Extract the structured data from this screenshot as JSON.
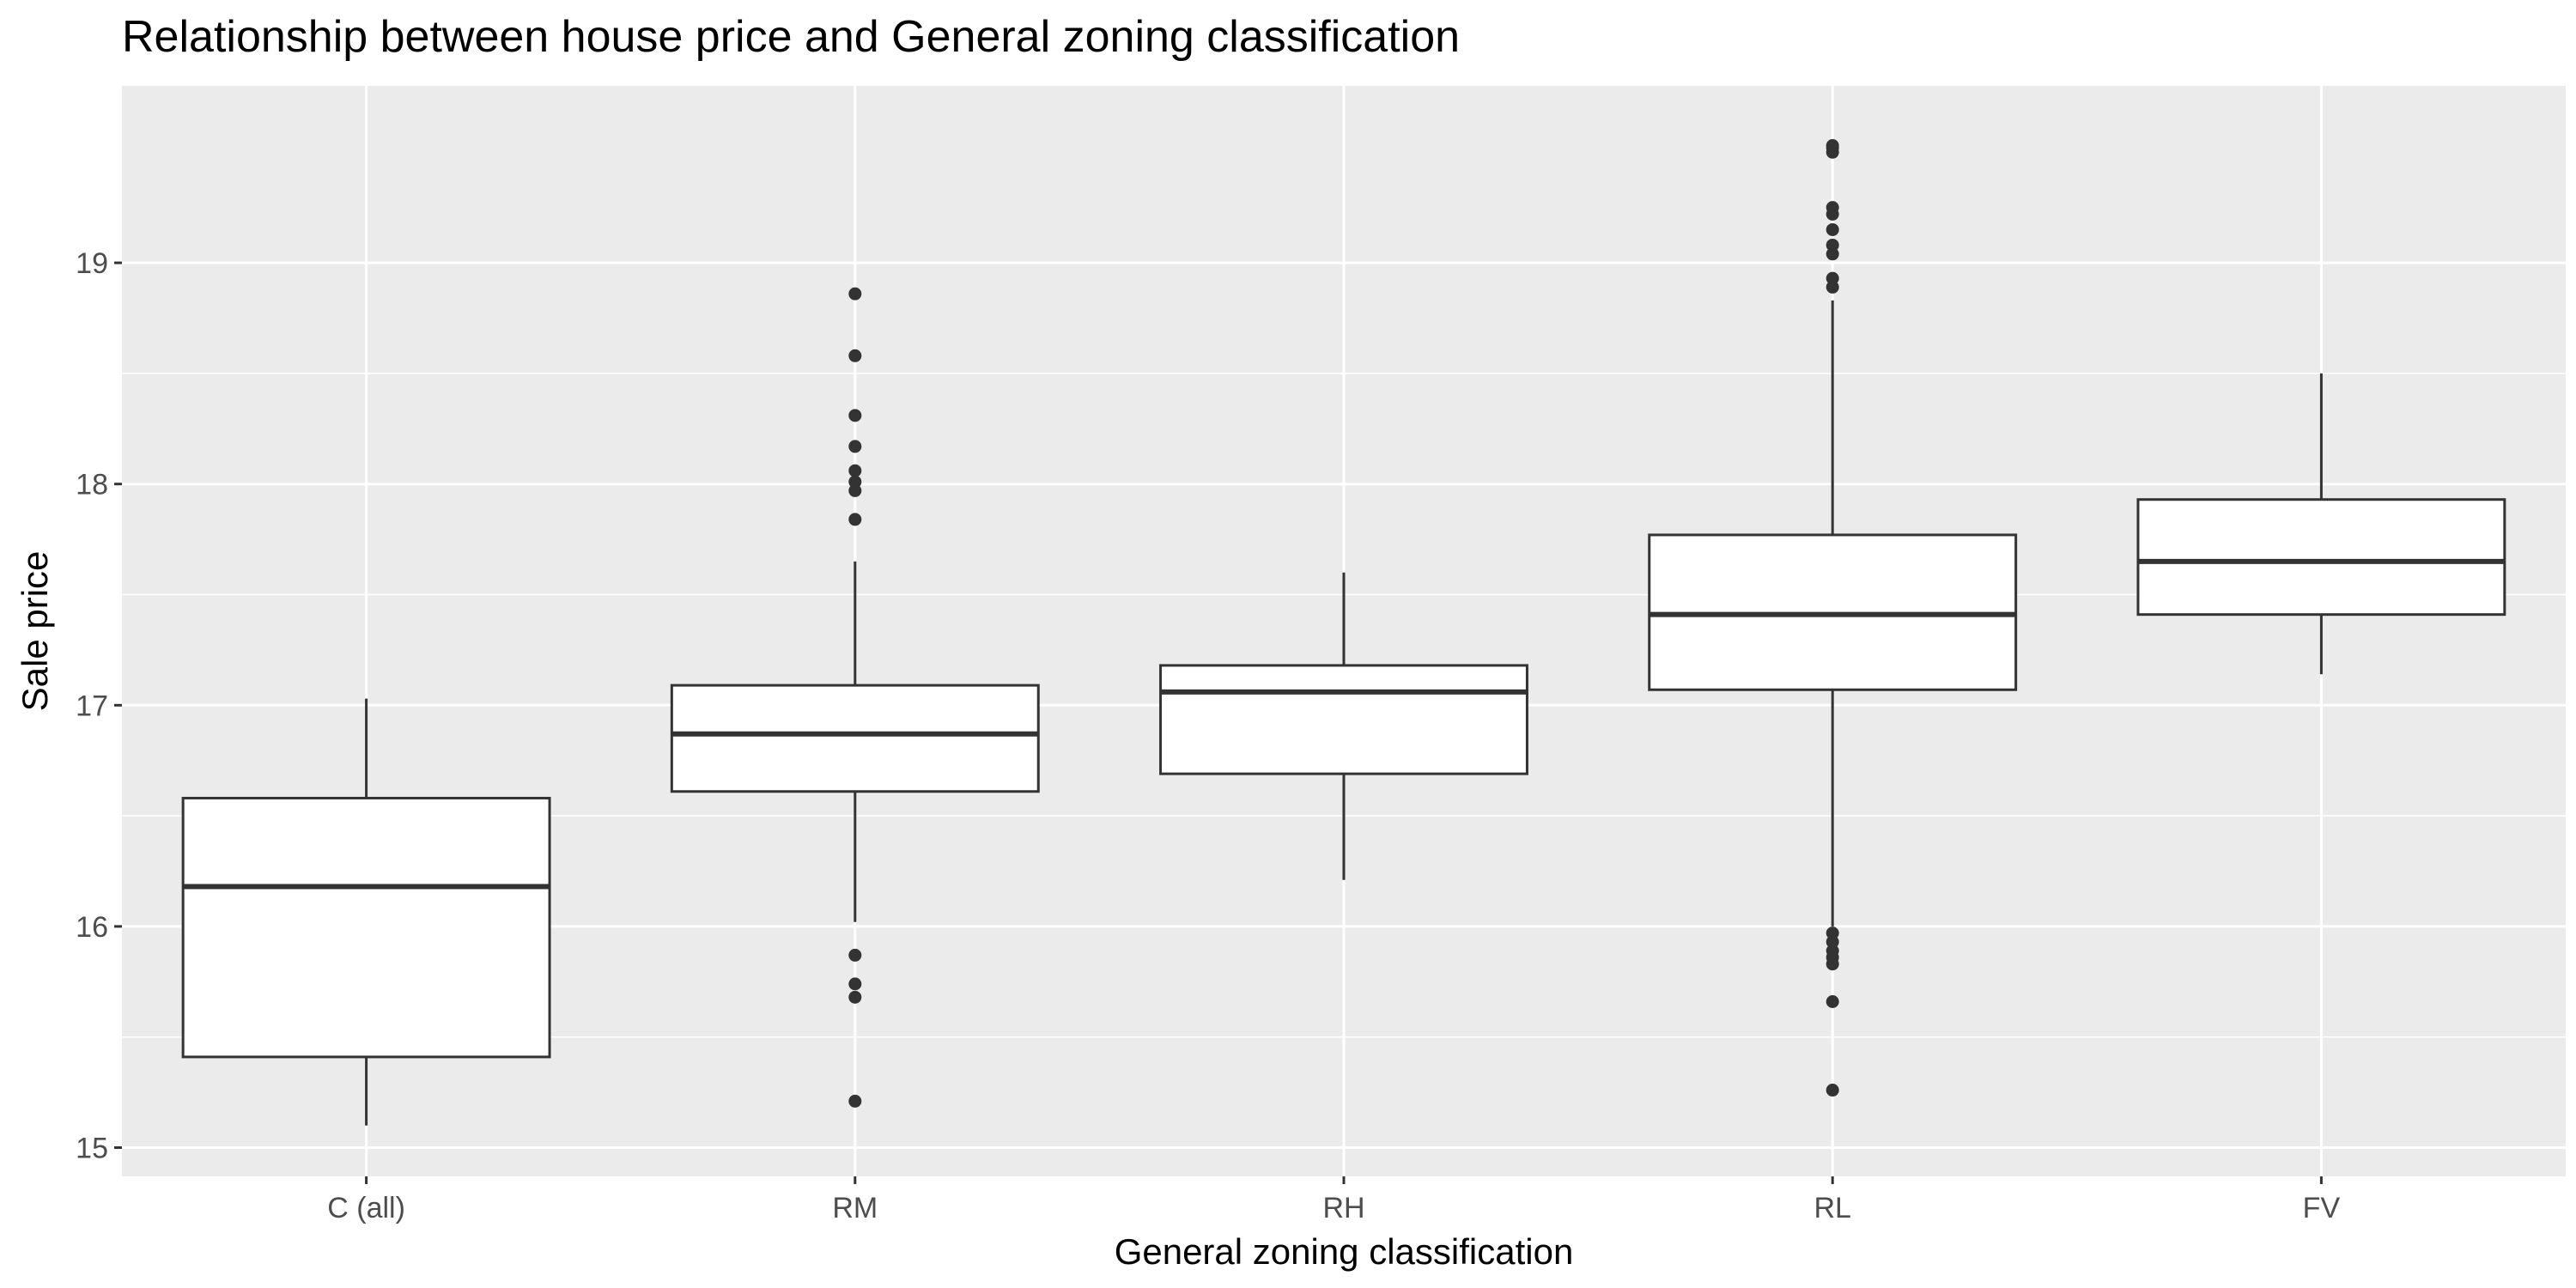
{
  "chart_data": {
    "type": "boxplot",
    "title": "Relationship between house price and General zoning classification",
    "xlabel": "General zoning classification",
    "ylabel": "Sale price",
    "ylim": [
      14.87,
      19.8
    ],
    "yticks": [
      15,
      16,
      17,
      18,
      19
    ],
    "grid": true,
    "legend": "none",
    "colors": {
      "panel_background": "#ebebeb",
      "grid_line": "#ffffff",
      "box_fill": "#ffffff",
      "box_stroke": "#333333",
      "outlier": "#333333",
      "tick_label": "#4d4d4d",
      "tick_mark": "#333333"
    },
    "categories": [
      "C (all)",
      "RM",
      "RH",
      "RL",
      "FV"
    ],
    "boxes": [
      {
        "category": "C (all)",
        "whisker_low": 15.1,
        "q1": 15.41,
        "median": 16.18,
        "q3": 16.58,
        "whisker_high": 17.03,
        "outliers": []
      },
      {
        "category": "RM",
        "whisker_low": 16.02,
        "q1": 16.61,
        "median": 16.87,
        "q3": 17.09,
        "whisker_high": 17.65,
        "outliers": [
          15.21,
          15.68,
          15.74,
          15.87,
          17.84,
          17.97,
          18.01,
          18.06,
          18.17,
          18.31,
          18.58,
          18.86
        ]
      },
      {
        "category": "RH",
        "whisker_low": 16.21,
        "q1": 16.69,
        "median": 17.06,
        "q3": 17.18,
        "whisker_high": 17.6,
        "outliers": []
      },
      {
        "category": "RL",
        "whisker_low": 16.0,
        "q1": 17.07,
        "median": 17.41,
        "q3": 17.77,
        "whisker_high": 18.83,
        "outliers": [
          15.26,
          15.66,
          15.83,
          15.86,
          15.89,
          15.93,
          15.97,
          18.89,
          18.93,
          19.04,
          19.08,
          19.15,
          19.22,
          19.25,
          19.5,
          19.52,
          19.53
        ]
      },
      {
        "category": "FV",
        "whisker_low": 17.14,
        "q1": 17.41,
        "median": 17.65,
        "q3": 17.93,
        "whisker_high": 18.5,
        "outliers": []
      }
    ]
  }
}
